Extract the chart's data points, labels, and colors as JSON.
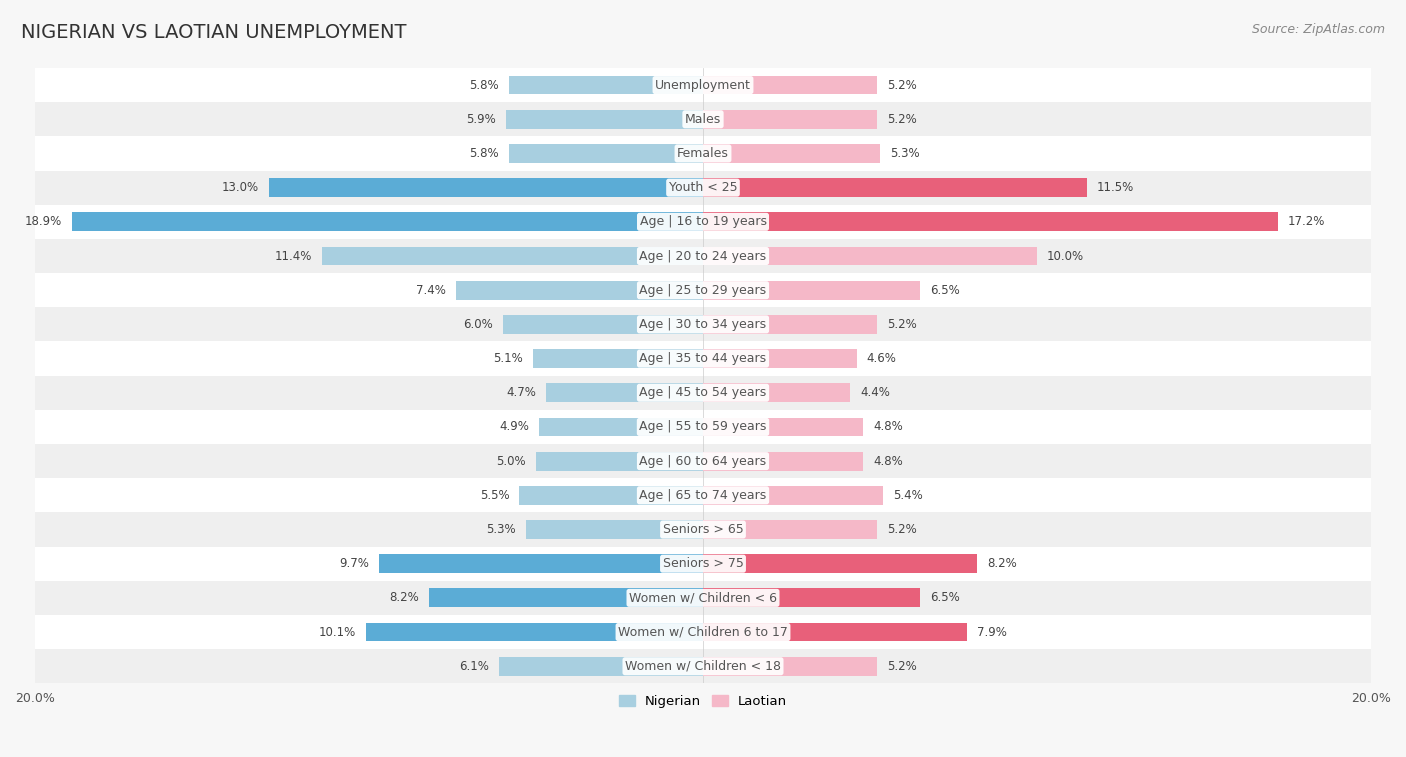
{
  "title": "NIGERIAN VS LAOTIAN UNEMPLOYMENT",
  "source": "Source: ZipAtlas.com",
  "categories": [
    "Unemployment",
    "Males",
    "Females",
    "Youth < 25",
    "Age | 16 to 19 years",
    "Age | 20 to 24 years",
    "Age | 25 to 29 years",
    "Age | 30 to 34 years",
    "Age | 35 to 44 years",
    "Age | 45 to 54 years",
    "Age | 55 to 59 years",
    "Age | 60 to 64 years",
    "Age | 65 to 74 years",
    "Seniors > 65",
    "Seniors > 75",
    "Women w/ Children < 6",
    "Women w/ Children 6 to 17",
    "Women w/ Children < 18"
  ],
  "nigerian": [
    5.8,
    5.9,
    5.8,
    13.0,
    18.9,
    11.4,
    7.4,
    6.0,
    5.1,
    4.7,
    4.9,
    5.0,
    5.5,
    5.3,
    9.7,
    8.2,
    10.1,
    6.1
  ],
  "laotian": [
    5.2,
    5.2,
    5.3,
    11.5,
    17.2,
    10.0,
    6.5,
    5.2,
    4.6,
    4.4,
    4.8,
    4.8,
    5.4,
    5.2,
    8.2,
    6.5,
    7.9,
    5.2
  ],
  "nigerian_color_normal": "#a8cfe0",
  "nigerian_color_highlight": "#5bacd6",
  "laotian_color_normal": "#f5b8c8",
  "laotian_color_highlight": "#e8607a",
  "highlight_rows": [
    3,
    4,
    14,
    15,
    16
  ],
  "bar_height": 0.55,
  "xlim": 20.0,
  "background_color": "#f7f7f7",
  "row_color_light": "#ffffff",
  "row_color_dark": "#efefef",
  "label_fontsize": 9,
  "title_fontsize": 14,
  "value_fontsize": 8.5,
  "source_fontsize": 9
}
